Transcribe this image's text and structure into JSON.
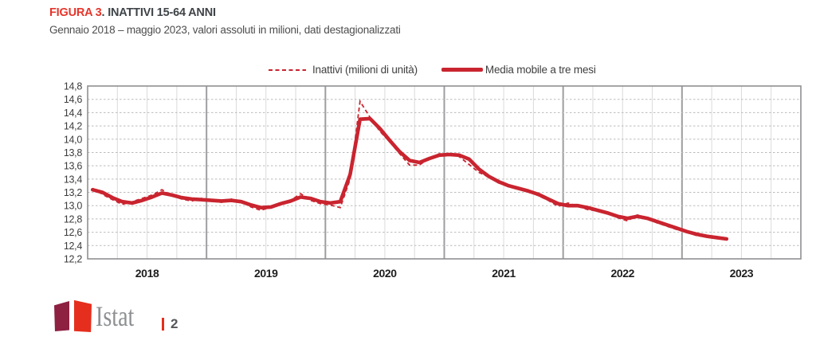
{
  "header": {
    "figure_label": "FIGURA 3",
    "figure_title": ". INATTIVI 15-64 ANNI",
    "subtitle": "Gennaio 2018 – maggio 2023, valori assoluti in milioni, dati destagionalizzati"
  },
  "legend": [
    {
      "label": "Inattivi (milioni di unità)",
      "style": "dashed"
    },
    {
      "label": "Media mobile a tre mesi",
      "style": "solid"
    }
  ],
  "chart_data": {
    "type": "line",
    "title": "Inattivi 15-64 anni",
    "x_start": "Gennaio 2018",
    "x_end": "Maggio 2023",
    "x_tick_labels": [
      "2018",
      "2019",
      "2020",
      "2021",
      "2022",
      "2023"
    ],
    "y_tick_labels": [
      "14,8",
      "14,6",
      "14,4",
      "14,2",
      "14,0",
      "13,8",
      "13,6",
      "13,4",
      "13,2",
      "13,0",
      "12,8",
      "12,6",
      "12,4",
      "12,2"
    ],
    "ylim": [
      12.2,
      14.8
    ],
    "grid": {
      "horizontal": "dashed",
      "vertical_quarterly": "solid-light",
      "vertical_yearly": "solid-gray"
    },
    "legend_position": "top-center",
    "x_frequency": "monthly",
    "series": [
      {
        "name": "Inattivi (milioni di unità)",
        "style": "dashed",
        "values": [
          13.26,
          13.17,
          13.09,
          13.02,
          13.06,
          13.11,
          13.16,
          13.24,
          13.15,
          13.1,
          13.07,
          13.11,
          13.09,
          13.05,
          13.1,
          13.06,
          12.98,
          12.93,
          12.98,
          13.05,
          13.08,
          13.18,
          13.08,
          13.03,
          13.01,
          12.97,
          13.4,
          14.57,
          14.33,
          14.12,
          13.96,
          13.78,
          13.61,
          13.61,
          13.72,
          13.78,
          13.77,
          13.74,
          13.62,
          13.5,
          13.43,
          13.34,
          13.32,
          13.25,
          13.21,
          13.15,
          13.08,
          12.99,
          13.04,
          12.99,
          12.94,
          12.92,
          12.88,
          12.82,
          12.77,
          12.86,
          12.8,
          12.74,
          12.69,
          12.64,
          12.6,
          12.55,
          12.53,
          12.51,
          12.5
        ]
      },
      {
        "name": "Media mobile a tre mesi",
        "style": "solid",
        "values": [
          13.24,
          13.2,
          13.12,
          13.06,
          13.04,
          13.08,
          13.13,
          13.19,
          13.16,
          13.12,
          13.1,
          13.09,
          13.08,
          13.07,
          13.08,
          13.06,
          13.01,
          12.97,
          12.98,
          13.03,
          13.07,
          13.13,
          13.11,
          13.06,
          13.04,
          13.06,
          13.47,
          14.3,
          14.31,
          14.16,
          13.98,
          13.81,
          13.68,
          13.65,
          13.71,
          13.76,
          13.77,
          13.76,
          13.7,
          13.55,
          13.44,
          13.36,
          13.3,
          13.26,
          13.22,
          13.17,
          13.1,
          13.03,
          13.0,
          13.0,
          12.97,
          12.93,
          12.89,
          12.84,
          12.81,
          12.84,
          12.81,
          12.76,
          12.71,
          12.66,
          12.61,
          12.57,
          12.54,
          12.52,
          12.5
        ]
      }
    ]
  },
  "footer": {
    "logo_text": "Istat",
    "page_number": "2"
  },
  "colors": {
    "line_red": "#c9242f",
    "title_red": "#e5352b",
    "title_dark": "#3f4448",
    "logo_maroon": "#8e2042",
    "logo_red": "#e52e1d"
  }
}
